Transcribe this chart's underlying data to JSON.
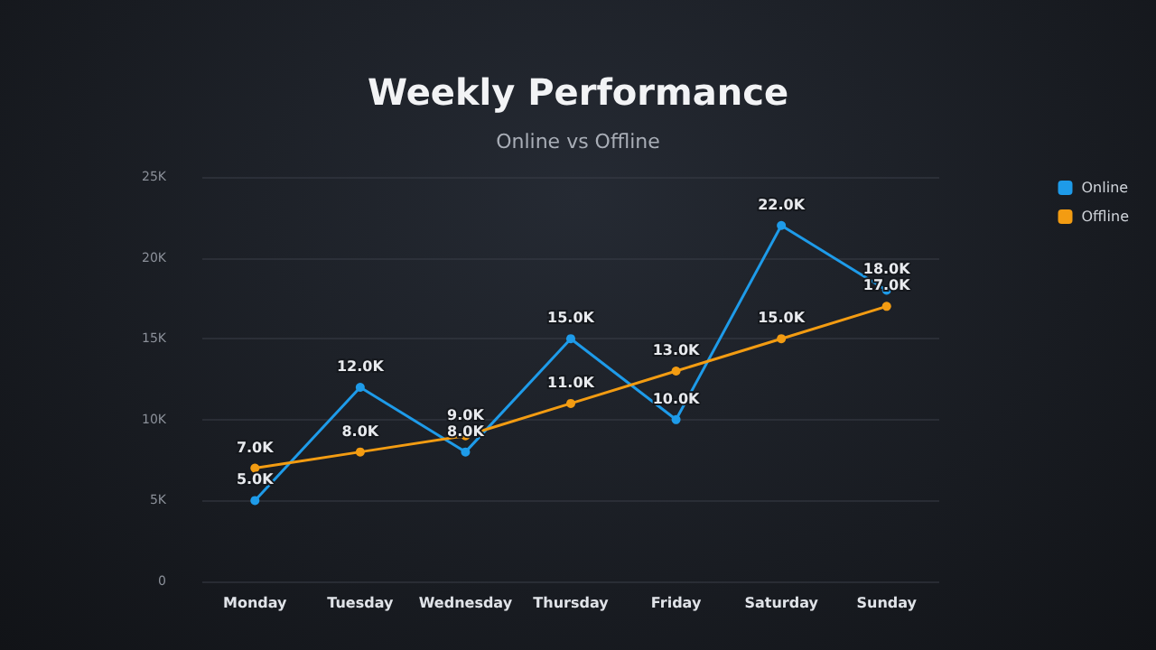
{
  "chart_data": {
    "type": "line",
    "title": "Weekly Performance",
    "subtitle": "Online vs Offline",
    "categories": [
      "Monday",
      "Tuesday",
      "Wednesday",
      "Thursday",
      "Friday",
      "Saturday",
      "Sunday"
    ],
    "series": [
      {
        "name": "Online",
        "color": "#1e9be9",
        "values": [
          5000,
          12000,
          8000,
          15000,
          10000,
          22000,
          18000
        ],
        "value_labels": [
          "5.0K",
          "12.0K",
          "8.0K",
          "15.0K",
          "10.0K",
          "22.0K",
          "18.0K"
        ]
      },
      {
        "name": "Offline",
        "color": "#f39c12",
        "values": [
          7000,
          8000,
          9000,
          11000,
          13000,
          15000,
          17000
        ],
        "value_labels": [
          "7.0K",
          "8.0K",
          "9.0K",
          "11.0K",
          "13.0K",
          "15.0K",
          "17.0K"
        ]
      }
    ],
    "ylim": [
      0,
      25000
    ],
    "yticks": [
      0,
      {
        "value": 5000,
        "label": "5K"
      },
      {
        "value": 10000,
        "label": "10K"
      },
      {
        "value": 15000,
        "label": "15K"
      },
      {
        "value": 20000,
        "label": "20K"
      },
      {
        "value": 25000,
        "label": "25K"
      }
    ],
    "grid": "y",
    "legend": "top right",
    "marker": "circle",
    "line_style": "solid"
  }
}
